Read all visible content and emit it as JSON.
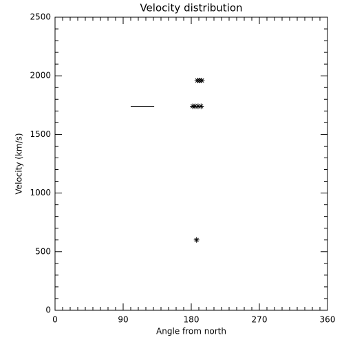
{
  "chart_data": {
    "type": "scatter",
    "title": "Velocity distribution",
    "x_label": "Angle from north",
    "y_label": "Velocity (km/s)",
    "xlim": [
      0,
      360
    ],
    "xticks": [
      0,
      90,
      180,
      270,
      360
    ],
    "ylim": [
      0,
      2500
    ],
    "yticks": [
      0,
      500,
      1000,
      1500,
      2000,
      2500
    ],
    "color": "#000000",
    "series": [
      {
        "type": "scatter",
        "marker": "asterisk",
        "x": [
          188,
          191,
          194,
          182,
          185,
          189,
          193,
          187
        ],
        "values": [
          1960,
          1960,
          1960,
          1740,
          1740,
          1740,
          1740,
          600
        ]
      },
      {
        "type": "line",
        "x": [
          100,
          131
        ],
        "values": [
          1740,
          1740
        ]
      }
    ]
  }
}
